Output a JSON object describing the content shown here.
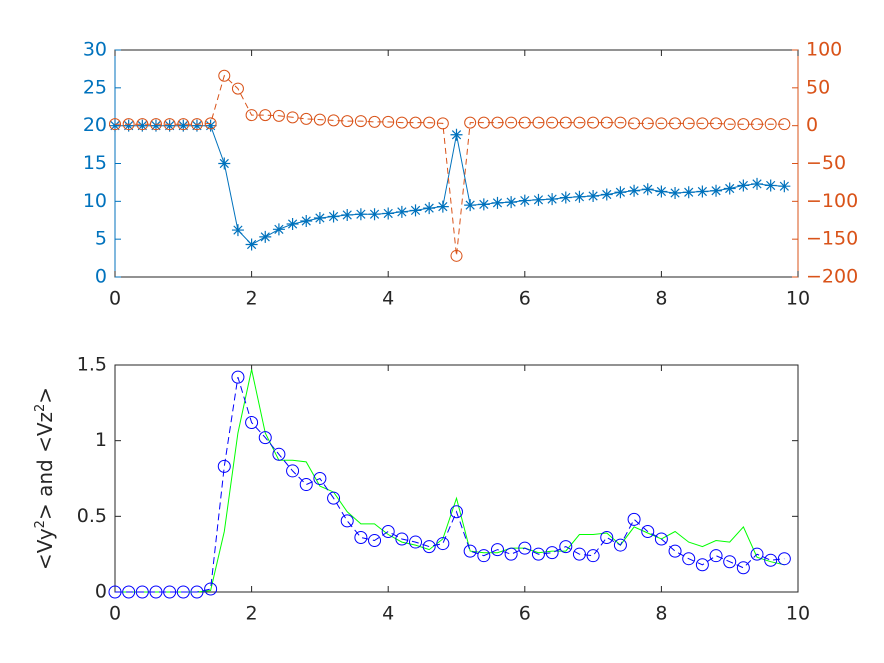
{
  "figure": {
    "background": "#ffffff",
    "axes_color": "#262626"
  },
  "chart_data": [
    {
      "type": "line",
      "title": "",
      "xlabel": "",
      "xlim": [
        0,
        10
      ],
      "xticks": [
        0,
        2,
        4,
        6,
        8,
        10
      ],
      "grid": false,
      "legend": "none",
      "yaxes": {
        "left": {
          "label": "",
          "ylim": [
            0,
            30
          ],
          "ticks": [
            0,
            5,
            10,
            15,
            20,
            25,
            30
          ],
          "color": "#0072BD"
        },
        "right": {
          "label": "",
          "ylim": [
            -200,
            100
          ],
          "ticks": [
            -200,
            -150,
            -100,
            -50,
            0,
            50,
            100
          ],
          "color": "#D95319"
        }
      },
      "x": [
        0,
        0.2,
        0.4,
        0.6,
        0.8,
        1.0,
        1.2,
        1.4,
        1.6,
        1.8,
        2.0,
        2.2,
        2.4,
        2.6,
        2.8,
        3.0,
        3.2,
        3.4,
        3.6,
        3.8,
        4.0,
        4.2,
        4.4,
        4.6,
        4.8,
        5.0,
        5.2,
        5.4,
        5.6,
        5.8,
        6.0,
        6.2,
        6.4,
        6.6,
        6.8,
        7.0,
        7.2,
        7.4,
        7.6,
        7.8,
        8.0,
        8.2,
        8.4,
        8.6,
        8.8,
        9.0,
        9.2,
        9.4,
        9.6,
        9.8
      ],
      "series": [
        {
          "axis": "left",
          "color": "#0072BD",
          "line": "solid",
          "marker": "asterisk",
          "values": [
            20,
            20,
            20,
            20,
            20,
            20,
            20,
            20,
            15,
            6.2,
            4.3,
            5.3,
            6.3,
            7.0,
            7.4,
            7.8,
            8.0,
            8.2,
            8.3,
            8.3,
            8.4,
            8.6,
            8.8,
            9.1,
            9.3,
            18.8,
            9.5,
            9.6,
            9.8,
            9.9,
            10.1,
            10.2,
            10.3,
            10.5,
            10.6,
            10.7,
            10.9,
            11.2,
            11.4,
            11.6,
            11.3,
            11.1,
            11.2,
            11.3,
            11.4,
            11.7,
            12.1,
            12.3,
            12.1,
            12.0
          ]
        },
        {
          "axis": "right",
          "color": "#D95319",
          "line": "dashed",
          "marker": "circle",
          "values": [
            2,
            2,
            2,
            2,
            2,
            2,
            2,
            3,
            66,
            49,
            14,
            14,
            13,
            11,
            9,
            8,
            7,
            6,
            6,
            5,
            5,
            4,
            4,
            4,
            3,
            -172,
            4,
            4,
            4,
            4,
            4,
            4,
            4,
            4,
            4,
            4,
            4,
            4,
            3,
            3,
            3,
            3,
            3,
            3,
            3,
            2,
            2,
            2,
            2,
            2
          ]
        }
      ]
    },
    {
      "type": "line",
      "title": "",
      "xlabel": "",
      "ylabel_parts": [
        "<Vy",
        "2",
        "> and <Vz",
        "2",
        ">"
      ],
      "xlim": [
        0,
        10
      ],
      "ylim": [
        0,
        1.5
      ],
      "xticks": [
        0,
        2,
        4,
        6,
        8,
        10
      ],
      "yticks": [
        0,
        0.5,
        1,
        1.5
      ],
      "ytick_labels": [
        "0",
        "0.5",
        "1",
        "1.5"
      ],
      "grid": false,
      "legend": "none",
      "x": [
        0,
        0.2,
        0.4,
        0.6,
        0.8,
        1.0,
        1.2,
        1.4,
        1.6,
        1.8,
        2.0,
        2.2,
        2.4,
        2.6,
        2.8,
        3.0,
        3.2,
        3.4,
        3.6,
        3.8,
        4.0,
        4.2,
        4.4,
        4.6,
        4.8,
        5.0,
        5.2,
        5.4,
        5.6,
        5.8,
        6.0,
        6.2,
        6.4,
        6.6,
        6.8,
        7.0,
        7.2,
        7.4,
        7.6,
        7.8,
        8.0,
        8.2,
        8.4,
        8.6,
        8.8,
        9.0,
        9.2,
        9.4,
        9.6,
        9.8
      ],
      "series": [
        {
          "color": "#0000FF",
          "line": "dashed",
          "marker": "circle",
          "values": [
            0,
            0,
            0,
            0,
            0,
            0,
            0,
            0.02,
            0.83,
            1.42,
            1.12,
            1.02,
            0.91,
            0.8,
            0.71,
            0.75,
            0.62,
            0.47,
            0.36,
            0.34,
            0.4,
            0.35,
            0.33,
            0.3,
            0.32,
            0.53,
            0.27,
            0.24,
            0.28,
            0.25,
            0.29,
            0.25,
            0.26,
            0.3,
            0.25,
            0.24,
            0.36,
            0.31,
            0.48,
            0.4,
            0.35,
            0.27,
            0.22,
            0.18,
            0.24,
            0.2,
            0.16,
            0.25,
            0.21,
            0.22
          ]
        },
        {
          "color": "#00FF00",
          "line": "solid",
          "marker": "none",
          "values": [
            0,
            0,
            0,
            0,
            0,
            0,
            0,
            0.01,
            0.4,
            1.05,
            1.47,
            1.05,
            0.87,
            0.87,
            0.86,
            0.7,
            0.66,
            0.53,
            0.45,
            0.45,
            0.38,
            0.33,
            0.31,
            0.28,
            0.35,
            0.62,
            0.27,
            0.26,
            0.26,
            0.29,
            0.29,
            0.26,
            0.27,
            0.27,
            0.38,
            0.38,
            0.39,
            0.31,
            0.43,
            0.39,
            0.35,
            0.4,
            0.33,
            0.3,
            0.34,
            0.33,
            0.43,
            0.23,
            0.2,
            0.18
          ]
        }
      ]
    }
  ]
}
